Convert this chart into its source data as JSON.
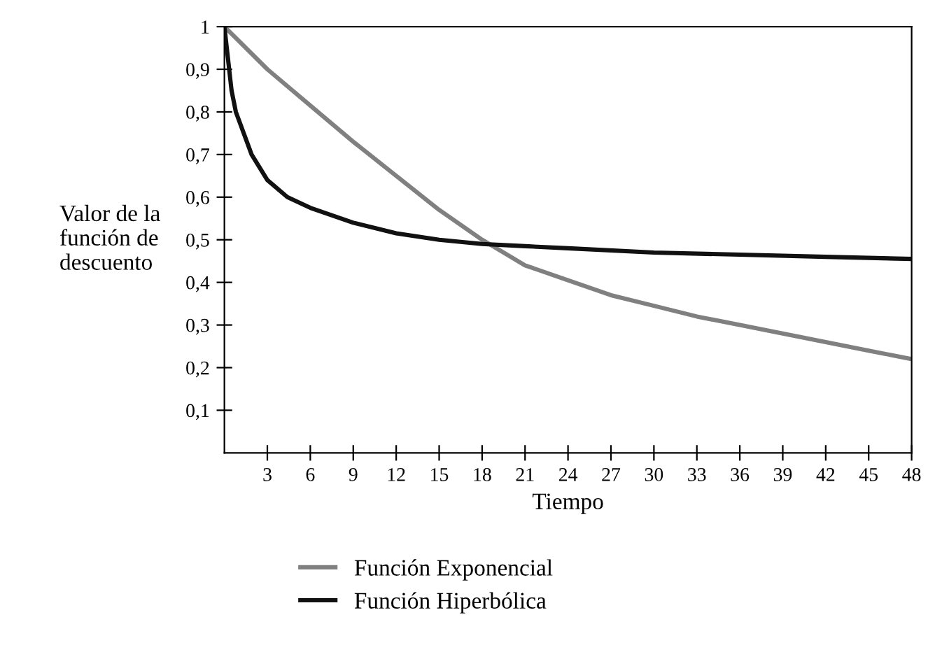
{
  "chart_data": {
    "type": "line",
    "xlabel": "Tiempo",
    "ylabel": "Valor de la\nfunción de\ndescuento",
    "xlim": [
      0,
      48
    ],
    "ylim": [
      0,
      1
    ],
    "xticks": [
      3,
      6,
      9,
      12,
      15,
      18,
      21,
      24,
      27,
      30,
      33,
      36,
      39,
      42,
      45,
      48
    ],
    "yticks": [
      {
        "value": 0.1,
        "label": "0,1"
      },
      {
        "value": 0.2,
        "label": "0,2"
      },
      {
        "value": 0.3,
        "label": "0,3"
      },
      {
        "value": 0.4,
        "label": "0,4"
      },
      {
        "value": 0.5,
        "label": "0,5"
      },
      {
        "value": 0.6,
        "label": "0,6"
      },
      {
        "value": 0.7,
        "label": "0,7"
      },
      {
        "value": 0.8,
        "label": "0,8"
      },
      {
        "value": 0.9,
        "label": "0,9"
      },
      {
        "value": 1,
        "label": "1"
      }
    ],
    "grid": false,
    "legend": "bottom",
    "series": [
      {
        "name": "Función Exponencial",
        "color": "#808080",
        "x": [
          0,
          3,
          6,
          9,
          12,
          15,
          18,
          21,
          24,
          27,
          30,
          33,
          36,
          39,
          42,
          45,
          48
        ],
        "values": [
          1,
          0.9,
          0.815,
          0.73,
          0.65,
          0.57,
          0.5,
          0.44,
          0.405,
          0.37,
          0.345,
          0.32,
          0.3,
          0.28,
          0.26,
          0.24,
          0.22
        ]
      },
      {
        "name": "Función Hiperbólica",
        "color": "#111111",
        "x": [
          0,
          0.5,
          0.8,
          1.9,
          3,
          4.4,
          6,
          9,
          12,
          15,
          18,
          21,
          24,
          30,
          36,
          42,
          48
        ],
        "values": [
          1,
          0.85,
          0.8,
          0.7,
          0.64,
          0.6,
          0.575,
          0.54,
          0.515,
          0.5,
          0.49,
          0.485,
          0.48,
          0.47,
          0.465,
          0.46,
          0.455
        ]
      }
    ]
  }
}
